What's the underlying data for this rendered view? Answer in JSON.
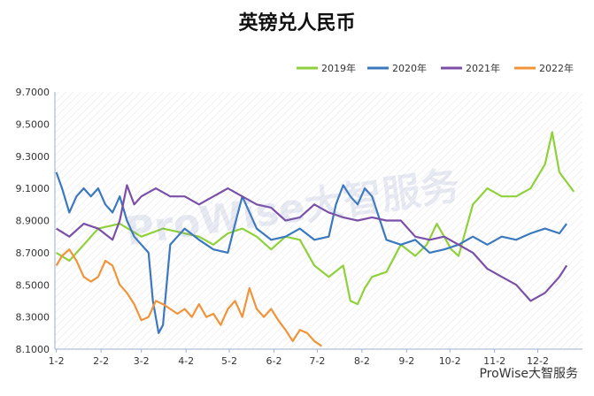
{
  "chart_data": {
    "type": "line",
    "title": "英镑兑人民币",
    "xlabel": "",
    "ylabel": "",
    "ylim": [
      8.1,
      9.7
    ],
    "yticks": [
      "8.1000",
      "8.3000",
      "8.5000",
      "8.7000",
      "8.9000",
      "9.1000",
      "9.3000",
      "9.5000",
      "9.7000"
    ],
    "xticks": [
      "1-2",
      "2-2",
      "3-2",
      "4-2",
      "5-2",
      "6-2",
      "7-2",
      "8-2",
      "9-2",
      "10-2",
      "11-2",
      "12-2"
    ],
    "legend_position": "top-right",
    "grid": false,
    "series": [
      {
        "name": "2019年",
        "color": "#8fd13a",
        "x": [
          1,
          10,
          20,
          30,
          45,
          60,
          75,
          90,
          100,
          110,
          120,
          130,
          140,
          150,
          160,
          170,
          180,
          190,
          200,
          205,
          210,
          215,
          220,
          230,
          240,
          250,
          258,
          265,
          270,
          275,
          280,
          290,
          300,
          310,
          320,
          330,
          340,
          345,
          350,
          360
        ],
        "y": [
          8.7,
          8.65,
          8.75,
          8.85,
          8.88,
          8.8,
          8.85,
          8.82,
          8.8,
          8.75,
          8.82,
          8.85,
          8.8,
          8.72,
          8.8,
          8.78,
          8.62,
          8.55,
          8.62,
          8.4,
          8.38,
          8.48,
          8.55,
          8.58,
          8.75,
          8.68,
          8.75,
          8.88,
          8.8,
          8.72,
          8.68,
          9.0,
          9.1,
          9.05,
          9.05,
          9.1,
          9.25,
          9.45,
          9.2,
          9.08
        ]
      },
      {
        "name": "2020年",
        "color": "#3a78c0",
        "x": [
          1,
          5,
          10,
          15,
          20,
          25,
          30,
          35,
          40,
          45,
          50,
          55,
          60,
          65,
          68,
          72,
          75,
          80,
          85,
          90,
          100,
          110,
          120,
          125,
          130,
          140,
          150,
          160,
          170,
          180,
          190,
          195,
          200,
          205,
          210,
          215,
          220,
          230,
          240,
          250,
          260,
          270,
          280,
          290,
          300,
          310,
          320,
          330,
          340,
          350,
          355
        ],
        "y": [
          9.2,
          9.1,
          8.95,
          9.05,
          9.1,
          9.05,
          9.1,
          9.0,
          8.95,
          9.05,
          8.9,
          8.8,
          8.75,
          8.7,
          8.4,
          8.2,
          8.25,
          8.75,
          8.8,
          8.85,
          8.78,
          8.72,
          8.7,
          8.88,
          9.05,
          8.85,
          8.78,
          8.8,
          8.85,
          8.78,
          8.8,
          9.0,
          9.12,
          9.05,
          9.0,
          9.1,
          9.05,
          8.78,
          8.75,
          8.78,
          8.7,
          8.72,
          8.75,
          8.8,
          8.75,
          8.8,
          8.78,
          8.82,
          8.85,
          8.82,
          8.88
        ]
      },
      {
        "name": "2021年",
        "color": "#7b4fa8",
        "x": [
          1,
          10,
          20,
          30,
          40,
          45,
          50,
          55,
          60,
          70,
          80,
          90,
          100,
          110,
          120,
          130,
          140,
          150,
          160,
          170,
          180,
          190,
          200,
          210,
          220,
          230,
          240,
          250,
          260,
          270,
          280,
          290,
          300,
          310,
          320,
          330,
          340,
          350,
          355
        ],
        "y": [
          8.85,
          8.8,
          8.88,
          8.85,
          8.78,
          8.9,
          9.12,
          9.0,
          9.05,
          9.1,
          9.05,
          9.05,
          9.0,
          9.05,
          9.1,
          9.05,
          9.0,
          8.98,
          8.9,
          8.92,
          9.0,
          8.95,
          8.92,
          8.9,
          8.92,
          8.9,
          8.9,
          8.8,
          8.78,
          8.8,
          8.75,
          8.7,
          8.6,
          8.55,
          8.5,
          8.4,
          8.45,
          8.55,
          8.62
        ]
      },
      {
        "name": "2022年",
        "color": "#f0943a",
        "x": [
          1,
          5,
          10,
          15,
          20,
          25,
          30,
          35,
          40,
          45,
          50,
          55,
          60,
          65,
          70,
          75,
          80,
          85,
          90,
          95,
          100,
          105,
          110,
          115,
          120,
          125,
          130,
          135,
          140,
          145,
          150,
          155,
          160,
          165,
          170,
          175,
          180,
          185
        ],
        "y": [
          8.62,
          8.68,
          8.72,
          8.65,
          8.55,
          8.52,
          8.55,
          8.65,
          8.62,
          8.5,
          8.45,
          8.38,
          8.28,
          8.3,
          8.4,
          8.38,
          8.35,
          8.32,
          8.35,
          8.3,
          8.38,
          8.3,
          8.32,
          8.25,
          8.35,
          8.4,
          8.3,
          8.48,
          8.35,
          8.3,
          8.35,
          8.28,
          8.22,
          8.15,
          8.22,
          8.2,
          8.15,
          8.12
        ]
      }
    ]
  },
  "watermark": {
    "center": "ProWise大智服务",
    "bottom": "ProWise大智服务"
  }
}
